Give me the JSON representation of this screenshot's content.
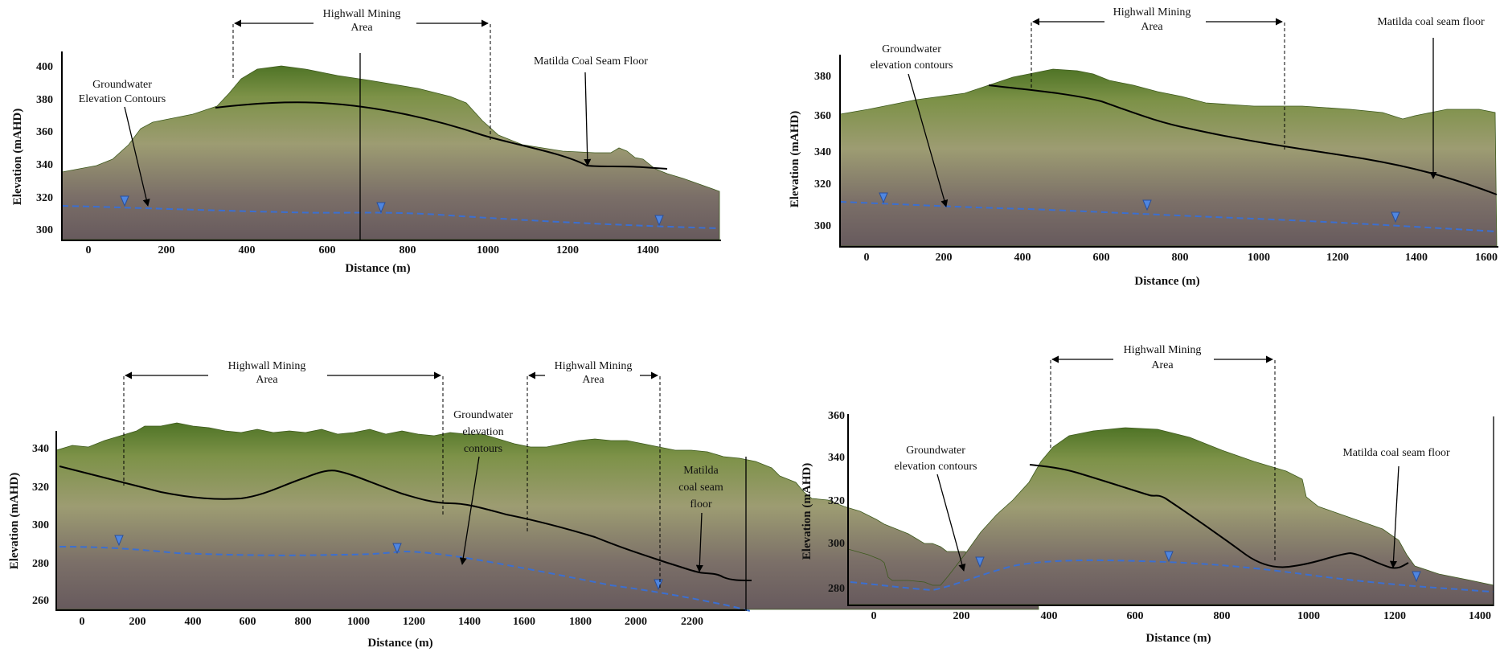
{
  "colors": {
    "terrain_top": "#5a7a2c",
    "terrain_mid": "#9a9a6e",
    "terrain_bottom": "#6a5c5e",
    "seam": "#000000",
    "groundwater": "#3b6fd1",
    "marker": "#4f86e0"
  },
  "panels": [
    {
      "id": "a",
      "xlabel": "Distance (m)",
      "ylabel": "Elevation (mAHD)",
      "xticks": [
        "0",
        "200",
        "400",
        "600",
        "800",
        "1000",
        "1200",
        "1400"
      ],
      "yticks": [
        "300",
        "320",
        "340",
        "360",
        "380",
        "400"
      ],
      "annotations": {
        "highwall": [
          "Highwall Mining",
          "Area"
        ],
        "groundwater": [
          "Groundwater",
          "Elevation Contours"
        ],
        "seam": [
          "Matilda Coal Seam Floor"
        ]
      }
    },
    {
      "id": "b",
      "xlabel": "Distance (m)",
      "ylabel": "Elevation (mAHD)",
      "xticks": [
        "0",
        "200",
        "400",
        "600",
        "800",
        "1000",
        "1200",
        "1400",
        "1600"
      ],
      "yticks": [
        "300",
        "320",
        "340",
        "360",
        "380"
      ],
      "annotations": {
        "highwall": [
          "Highwall Mining",
          "Area"
        ],
        "groundwater": [
          "Groundwater",
          "elevation contours"
        ],
        "seam": [
          "Matilda coal seam floor"
        ]
      }
    },
    {
      "id": "c",
      "xlabel": "Distance (m)",
      "ylabel": "Elevation (mAHD)",
      "xticks": [
        "0",
        "200",
        "400",
        "600",
        "800",
        "1000",
        "1200",
        "1400",
        "1600",
        "1800",
        "2000",
        "2200"
      ],
      "yticks": [
        "260",
        "280",
        "300",
        "320",
        "340"
      ],
      "annotations": {
        "highwall_1": [
          "Highwall Mining",
          "Area"
        ],
        "highwall_2": [
          "Highwall Mining",
          "Area"
        ],
        "groundwater": [
          "Groundwater",
          "elevation",
          "contours"
        ],
        "seam": [
          "Matilda",
          "coal seam",
          "floor"
        ]
      }
    },
    {
      "id": "d",
      "xlabel": "Distance (m)",
      "ylabel": "Elevation (mAHD)",
      "xticks": [
        "0",
        "200",
        "400",
        "600",
        "800",
        "1000",
        "1200",
        "1400"
      ],
      "yticks": [
        "280",
        "300",
        "320",
        "340",
        "360"
      ],
      "annotations": {
        "highwall": [
          "Highwall Mining",
          "Area"
        ],
        "groundwater": [
          "Groundwater",
          "elevation contours"
        ],
        "seam": [
          "Matilda coal seam floor"
        ]
      }
    }
  ]
}
